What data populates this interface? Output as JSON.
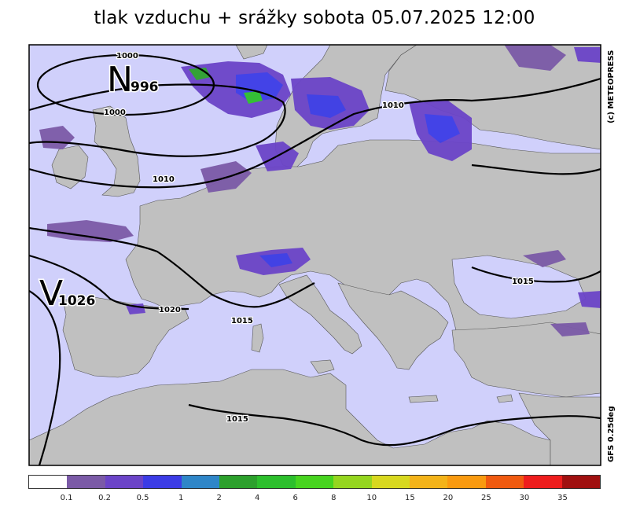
{
  "title": "tlak vzduchu + srážky  sobota 05.07.2025 12:00",
  "copyright": "(c) METEOPRESS",
  "model": "GFS  0.25deg",
  "colors": {
    "sea": "#d0d0fb",
    "land": "#c0c0c0",
    "isobar": "#000000"
  },
  "pressure_centers": [
    {
      "type": "low",
      "letter": "N",
      "value": "996"
    },
    {
      "type": "high",
      "letter": "V",
      "value": "1026"
    }
  ],
  "isobar_labels": [
    "1000",
    "1000",
    "1010",
    "1010",
    "1015",
    "1020",
    "1015",
    "1015"
  ],
  "legend": {
    "colors": [
      "#ffffff",
      "#7b5aa7",
      "#6b44c8",
      "#3c3ce6",
      "#2f86c8",
      "#2ca02c",
      "#2cbf2c",
      "#47d41f",
      "#95d61f",
      "#d8d81f",
      "#f3b319",
      "#f99a10",
      "#f05a10",
      "#ee1d1d",
      "#a01010"
    ],
    "labels": [
      "0.1",
      "0.2",
      "0.5",
      "1",
      "2",
      "4",
      "6",
      "8",
      "10",
      "15",
      "20",
      "25",
      "30",
      "35"
    ]
  }
}
